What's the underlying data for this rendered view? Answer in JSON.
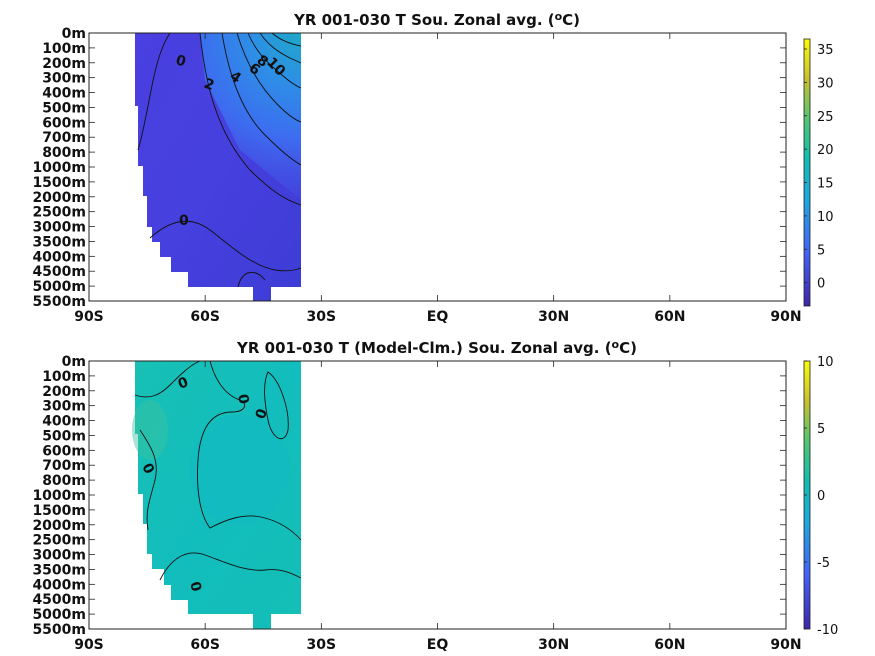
{
  "chart_data": [
    {
      "type": "heatmap",
      "title": "YR 001-030 T Sou. Zonal avg. (",
      "title_sup": "o",
      "title_end": "C)",
      "xticks": [
        "90S",
        "60S",
        "30S",
        "EQ",
        "30N",
        "60N",
        "90N"
      ],
      "xtick_values": [
        -90,
        -60,
        -30,
        0,
        30,
        60,
        90
      ],
      "xlim": [
        -90,
        90
      ],
      "yticks": [
        "0m",
        "100m",
        "200m",
        "300m",
        "400m",
        "500m",
        "600m",
        "700m",
        "800m",
        "1000m",
        "1500m",
        "2000m",
        "2500m",
        "3000m",
        "3500m",
        "4000m",
        "4500m",
        "5000m",
        "5500m"
      ],
      "colorbar": {
        "ticks": [
          35,
          30,
          25,
          20,
          15,
          10,
          5,
          0
        ],
        "range": [
          -3.5,
          36.5
        ]
      },
      "data_extent_lat": [
        -78,
        -34
      ],
      "contour_labels": [
        "0",
        "2",
        "4",
        "6",
        "8",
        "10",
        "0"
      ]
    },
    {
      "type": "heatmap",
      "title": "YR 001-030 T (Model-Clm.) Sou. Zonal avg. (",
      "title_sup": "o",
      "title_end": "C)",
      "xticks": [
        "90S",
        "60S",
        "30S",
        "EQ",
        "30N",
        "60N",
        "90N"
      ],
      "xtick_values": [
        -90,
        -60,
        -30,
        0,
        30,
        60,
        90
      ],
      "xlim": [
        -90,
        90
      ],
      "yticks": [
        "0m",
        "100m",
        "200m",
        "300m",
        "400m",
        "500m",
        "600m",
        "700m",
        "800m",
        "1000m",
        "1500m",
        "2000m",
        "2500m",
        "3000m",
        "3500m",
        "4000m",
        "4500m",
        "5000m",
        "5500m"
      ],
      "colorbar": {
        "ticks": [
          10,
          5,
          0,
          -5,
          -10
        ],
        "range": [
          -10,
          10
        ]
      },
      "data_extent_lat": [
        -78,
        -34
      ],
      "contour_labels": [
        "0",
        "0",
        "0",
        "0",
        "0"
      ]
    }
  ]
}
